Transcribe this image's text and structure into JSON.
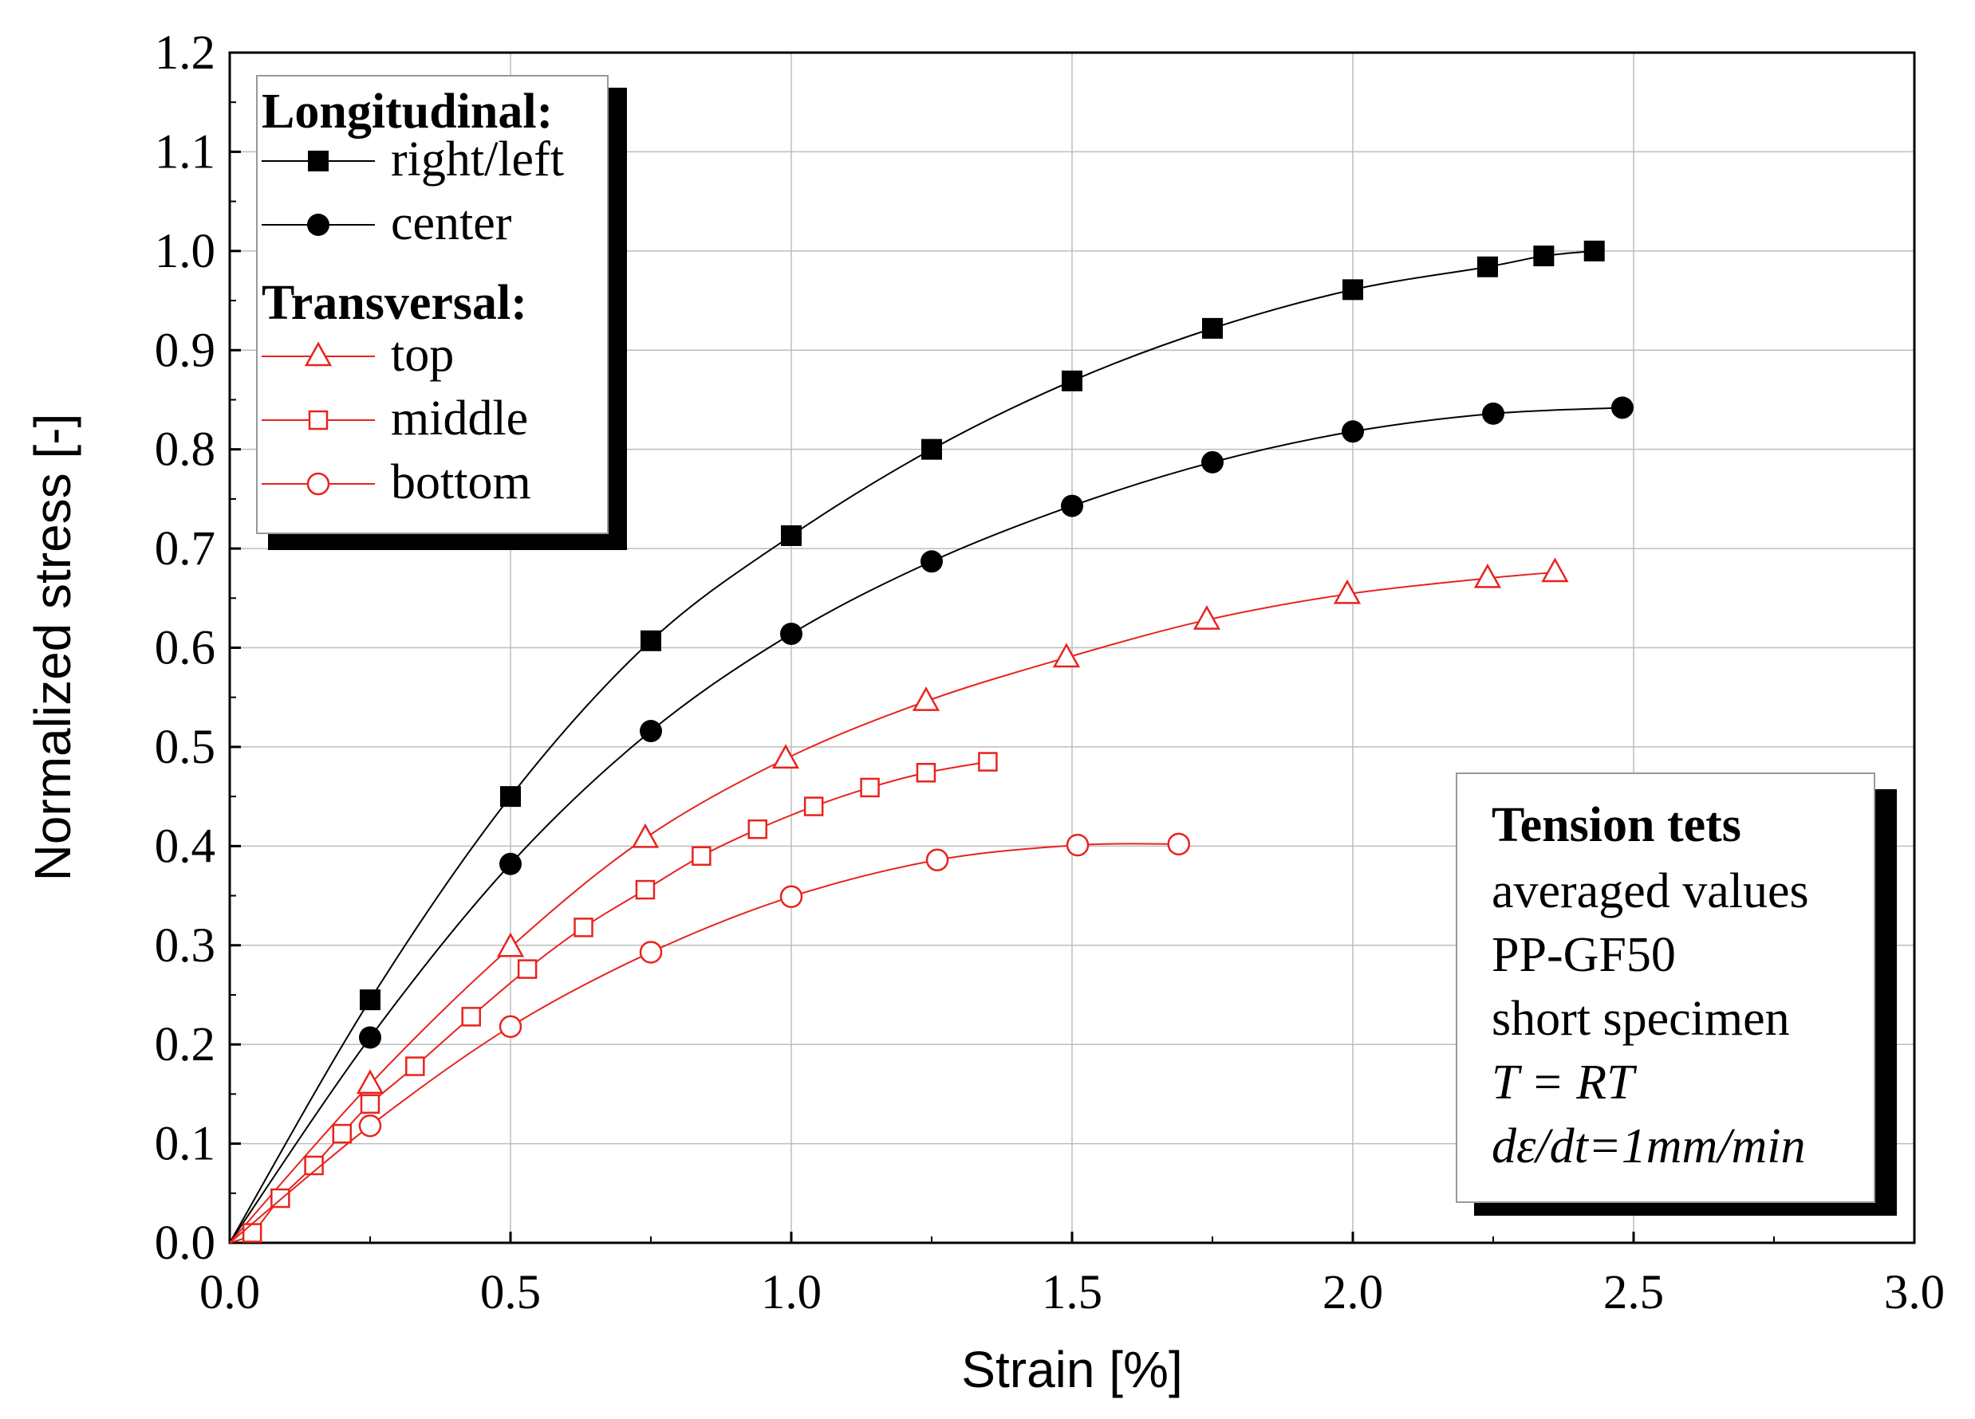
{
  "chart_data": {
    "type": "line",
    "title": "",
    "xlabel": "Strain [%]",
    "ylabel": "Normalized stress [-]",
    "xlim": [
      0,
      3.0
    ],
    "ylim": [
      0,
      1.2
    ],
    "xticks": [
      "0.0",
      "0.5",
      "1.0",
      "1.5",
      "2.0",
      "2.5",
      "3.0"
    ],
    "yticks": [
      "0.0",
      "0.1",
      "0.2",
      "0.3",
      "0.4",
      "0.5",
      "0.6",
      "0.7",
      "0.8",
      "0.9",
      "1.0",
      "1.1",
      "1.2"
    ],
    "grid": true,
    "legend": {
      "placement": "top-left",
      "groups": [
        {
          "heading": "Longitudinal:",
          "entries": [
            "right/left",
            "center"
          ]
        },
        {
          "heading": "Transversal:",
          "entries": [
            "top",
            "middle",
            "bottom"
          ]
        }
      ]
    },
    "series": [
      {
        "name": "right/left",
        "group": "Longitudinal",
        "color": "#000000",
        "marker": "filled-square",
        "x": [
          0.0,
          0.25,
          0.5,
          0.75,
          1.0,
          1.25,
          1.5,
          1.75,
          2.0,
          2.24,
          2.34,
          2.43
        ],
        "y": [
          0.0,
          0.245,
          0.45,
          0.607,
          0.713,
          0.8,
          0.869,
          0.922,
          0.961,
          0.984,
          0.995,
          1.0
        ]
      },
      {
        "name": "center",
        "group": "Longitudinal",
        "color": "#000000",
        "marker": "filled-circle",
        "x": [
          0.0,
          0.25,
          0.5,
          0.75,
          1.0,
          1.25,
          1.5,
          1.75,
          2.0,
          2.25,
          2.48
        ],
        "y": [
          0.0,
          0.207,
          0.382,
          0.516,
          0.614,
          0.687,
          0.743,
          0.787,
          0.818,
          0.836,
          0.842
        ]
      },
      {
        "name": "top",
        "group": "Transversal",
        "color": "#e8231e",
        "marker": "open-triangle",
        "x": [
          0.0,
          0.25,
          0.5,
          0.74,
          0.99,
          1.24,
          1.49,
          1.74,
          1.99,
          2.24,
          2.36
        ],
        "y": [
          0.0,
          0.16,
          0.298,
          0.408,
          0.488,
          0.546,
          0.59,
          0.628,
          0.654,
          0.67,
          0.676
        ]
      },
      {
        "name": "middle",
        "group": "Transversal",
        "color": "#e8231e",
        "marker": "open-square",
        "x": [
          0.0,
          0.04,
          0.09,
          0.15,
          0.2,
          0.25,
          0.33,
          0.43,
          0.53,
          0.63,
          0.74,
          0.84,
          0.94,
          1.04,
          1.14,
          1.24,
          1.35
        ],
        "y": [
          0.0,
          0.01,
          0.045,
          0.078,
          0.11,
          0.14,
          0.178,
          0.228,
          0.276,
          0.318,
          0.356,
          0.39,
          0.417,
          0.44,
          0.459,
          0.474,
          0.485
        ]
      },
      {
        "name": "bottom",
        "group": "Transversal",
        "color": "#e8231e",
        "marker": "open-circle",
        "x": [
          0.0,
          0.25,
          0.5,
          0.75,
          1.0,
          1.26,
          1.51,
          1.69
        ],
        "y": [
          0.0,
          0.118,
          0.218,
          0.293,
          0.349,
          0.386,
          0.401,
          0.402
        ]
      }
    ],
    "annotation": {
      "title": "Tension tets",
      "lines": [
        "averaged values",
        "PP-GF50",
        "short specimen"
      ],
      "italic_lines": [
        "T = RT",
        "dε/dt=1mm/min"
      ]
    }
  }
}
